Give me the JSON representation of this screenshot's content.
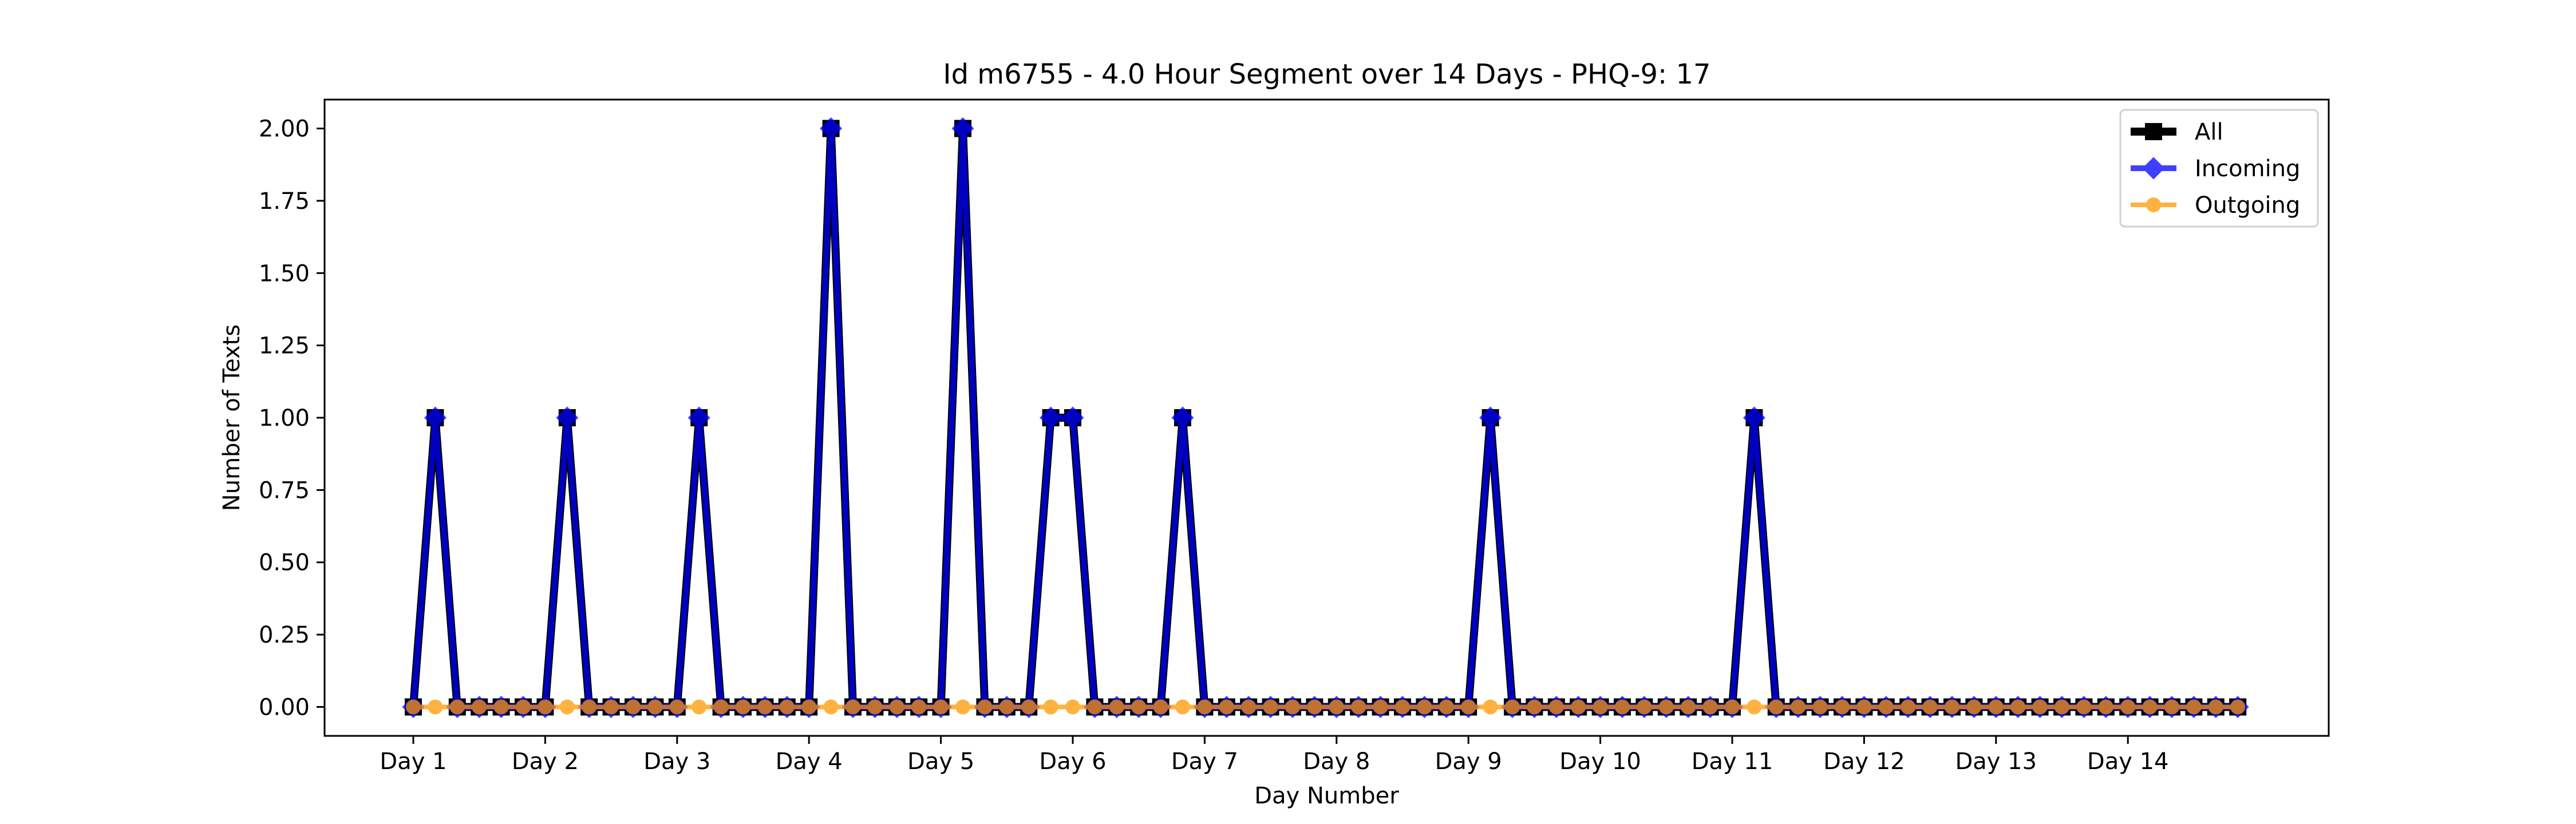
{
  "chart_data": {
    "type": "line",
    "title": "Id m6755 - 4.0 Hour Segment over 14 Days - PHQ-9: 17",
    "xlabel": "Day Number",
    "ylabel": "Number of Texts",
    "ylim": [
      -0.1,
      2.1
    ],
    "yticks": [
      "0.00",
      "0.25",
      "0.50",
      "0.75",
      "1.00",
      "1.25",
      "1.50",
      "1.75",
      "2.00"
    ],
    "xticks": [
      "Day 1",
      "Day 2",
      "Day 3",
      "Day 4",
      "Day 5",
      "Day 6",
      "Day 7",
      "Day 8",
      "Day 9",
      "Day 10",
      "Day 11",
      "Day 12",
      "Day 13",
      "Day 14"
    ],
    "grid": false,
    "legend_position": "top-right",
    "segments_per_day": 6,
    "segment_hours": 4.0,
    "series": [
      {
        "name": "All",
        "color": "#000000",
        "marker": "square",
        "values": [
          0,
          1,
          0,
          0,
          0,
          0,
          0,
          1,
          0,
          0,
          0,
          0,
          0,
          1,
          0,
          0,
          0,
          0,
          0,
          2,
          0,
          0,
          0,
          0,
          0,
          2,
          0,
          0,
          0,
          1,
          1,
          0,
          0,
          0,
          0,
          1,
          0,
          0,
          0,
          0,
          0,
          0,
          0,
          0,
          0,
          0,
          0,
          0,
          0,
          1,
          0,
          0,
          0,
          0,
          0,
          0,
          0,
          0,
          0,
          0,
          0,
          1,
          0,
          0,
          0,
          0,
          0,
          0,
          0,
          0,
          0,
          0,
          0,
          0,
          0,
          0,
          0,
          0,
          0,
          0,
          0,
          0,
          0,
          0
        ]
      },
      {
        "name": "Incoming",
        "color": "#0000ff",
        "marker": "diamond",
        "values": [
          0,
          1,
          0,
          0,
          0,
          0,
          0,
          1,
          0,
          0,
          0,
          0,
          0,
          1,
          0,
          0,
          0,
          0,
          0,
          2,
          0,
          0,
          0,
          0,
          0,
          2,
          0,
          0,
          0,
          1,
          1,
          0,
          0,
          0,
          0,
          1,
          0,
          0,
          0,
          0,
          0,
          0,
          0,
          0,
          0,
          0,
          0,
          0,
          0,
          1,
          0,
          0,
          0,
          0,
          0,
          0,
          0,
          0,
          0,
          0,
          0,
          1,
          0,
          0,
          0,
          0,
          0,
          0,
          0,
          0,
          0,
          0,
          0,
          0,
          0,
          0,
          0,
          0,
          0,
          0,
          0,
          0,
          0,
          0
        ]
      },
      {
        "name": "Outgoing",
        "color": "#ff9900",
        "marker": "circle",
        "values": [
          0,
          0,
          0,
          0,
          0,
          0,
          0,
          0,
          0,
          0,
          0,
          0,
          0,
          0,
          0,
          0,
          0,
          0,
          0,
          0,
          0,
          0,
          0,
          0,
          0,
          0,
          0,
          0,
          0,
          0,
          0,
          0,
          0,
          0,
          0,
          0,
          0,
          0,
          0,
          0,
          0,
          0,
          0,
          0,
          0,
          0,
          0,
          0,
          0,
          0,
          0,
          0,
          0,
          0,
          0,
          0,
          0,
          0,
          0,
          0,
          0,
          0,
          0,
          0,
          0,
          0,
          0,
          0,
          0,
          0,
          0,
          0,
          0,
          0,
          0,
          0,
          0,
          0,
          0,
          0,
          0,
          0,
          0,
          0
        ]
      }
    ]
  }
}
